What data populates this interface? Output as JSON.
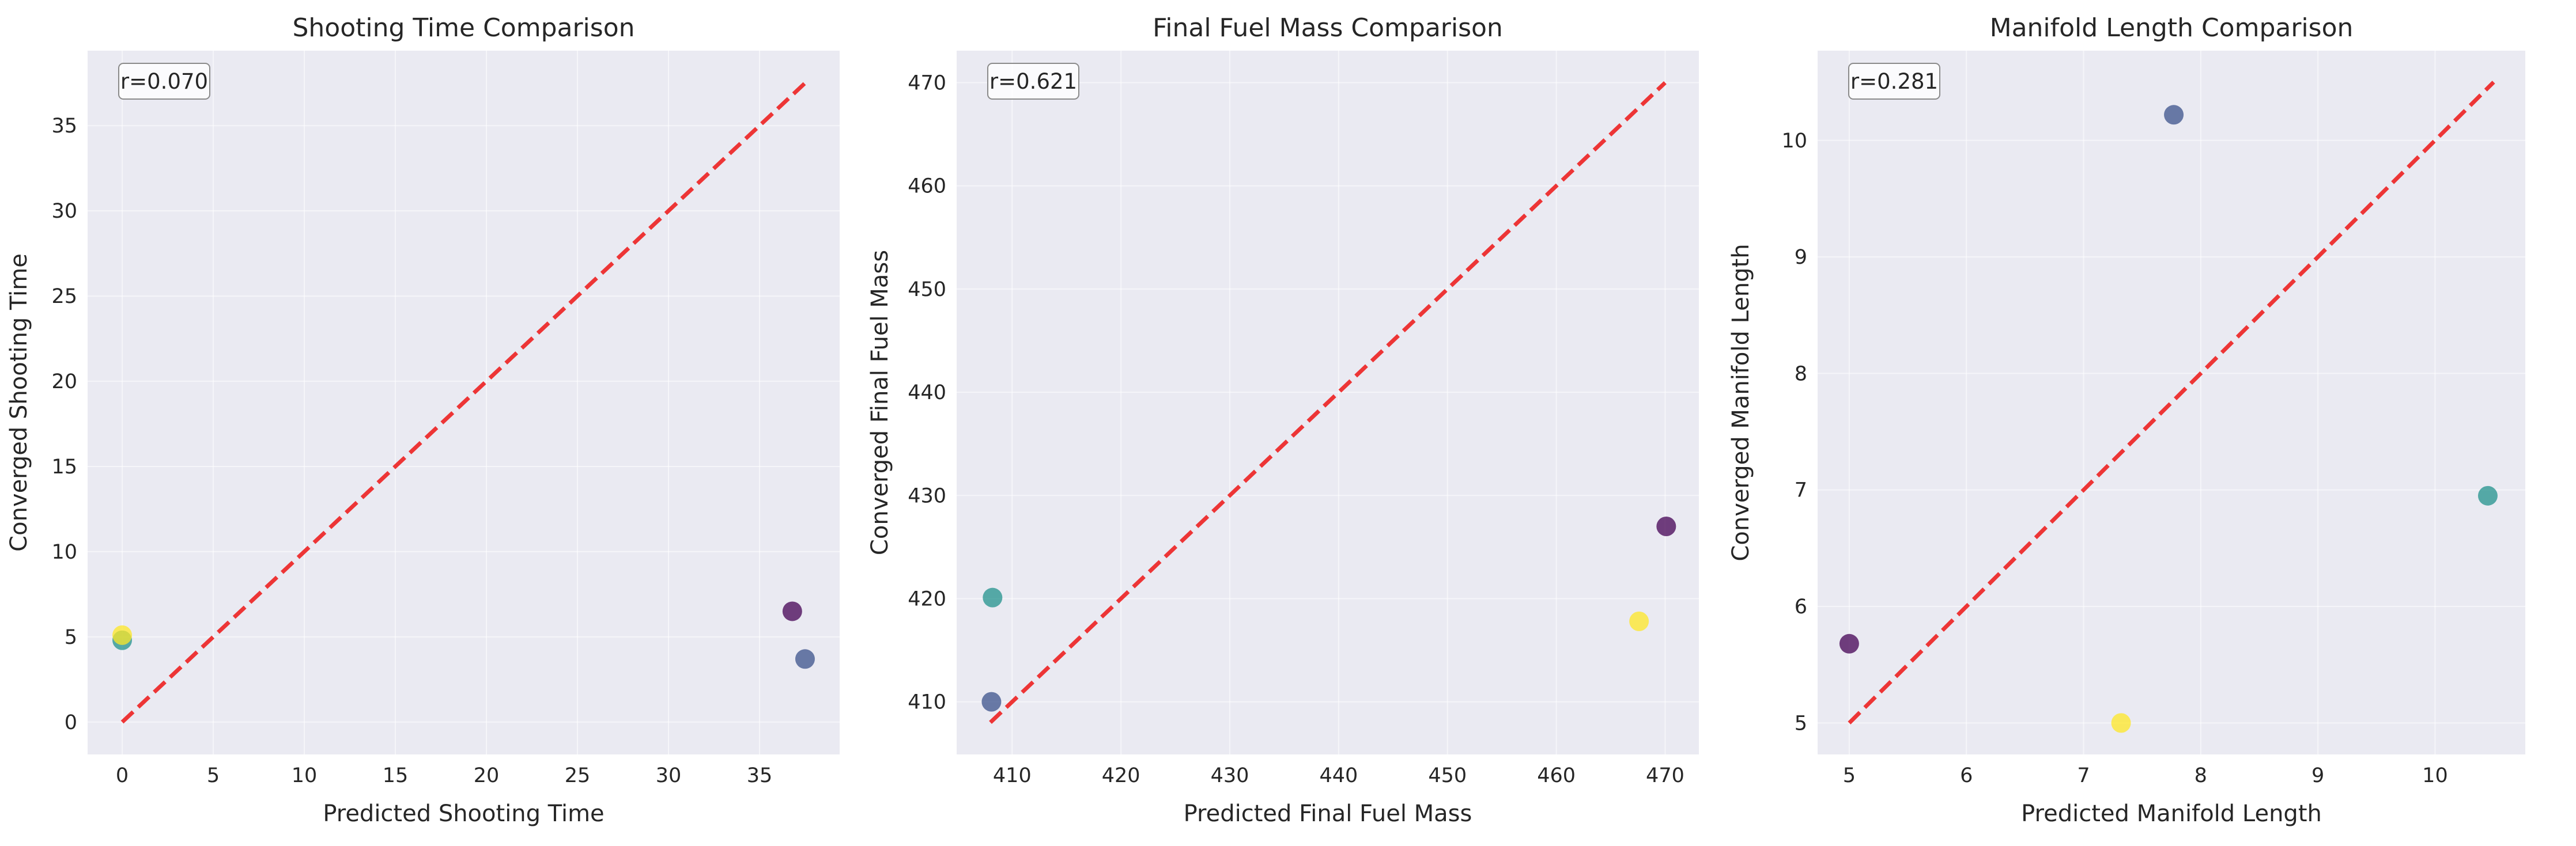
{
  "colors": {
    "plot_bg": "#eaeaf2",
    "grid": "#ffffff",
    "identity_line": "#ee2222",
    "point_purple": "#440154",
    "point_blue": "#3b528b",
    "point_teal": "#21918c",
    "point_yellow": "#fde725"
  },
  "chart_data": [
    {
      "type": "scatter",
      "title": "Shooting Time Comparison",
      "xlabel": "Predicted Shooting Time",
      "ylabel": "Converged Shooting Time",
      "annotation": "r=0.070",
      "xlim": [
        -1.9,
        39.4
      ],
      "ylim": [
        -1.9,
        39.4
      ],
      "xticks": [
        0,
        5,
        10,
        15,
        20,
        25,
        30,
        35
      ],
      "yticks": [
        0,
        5,
        10,
        15,
        20,
        25,
        30,
        35
      ],
      "identity_line": [
        0,
        37.5
      ],
      "grid": true,
      "points": [
        {
          "x": 36.8,
          "y": 6.5,
          "color": "point_purple"
        },
        {
          "x": 37.5,
          "y": 3.7,
          "color": "point_blue"
        },
        {
          "x": 0.0,
          "y": 4.8,
          "color": "point_teal"
        },
        {
          "x": 0.0,
          "y": 5.1,
          "color": "point_yellow"
        }
      ]
    },
    {
      "type": "scatter",
      "title": "Final Fuel Mass Comparison",
      "xlabel": "Predicted Final Fuel Mass",
      "ylabel": "Converged Final Fuel Mass",
      "annotation": "r=0.621",
      "xlim": [
        404.9,
        473.1
      ],
      "ylim": [
        404.9,
        473.1
      ],
      "xticks": [
        410,
        420,
        430,
        440,
        450,
        460,
        470
      ],
      "yticks": [
        410,
        420,
        430,
        440,
        450,
        460,
        470
      ],
      "identity_line": [
        408,
        470
      ],
      "grid": true,
      "points": [
        {
          "x": 470.1,
          "y": 427.0,
          "color": "point_purple"
        },
        {
          "x": 408.1,
          "y": 410.0,
          "color": "point_blue"
        },
        {
          "x": 408.2,
          "y": 420.1,
          "color": "point_teal"
        },
        {
          "x": 467.6,
          "y": 417.8,
          "color": "point_yellow"
        }
      ]
    },
    {
      "type": "scatter",
      "title": "Manifold Length Comparison",
      "xlabel": "Predicted Manifold Length",
      "ylabel": "Converged Manifold Length",
      "annotation": "r=0.281",
      "xlim": [
        4.73,
        10.77
      ],
      "ylim": [
        4.73,
        10.77
      ],
      "xticks": [
        5,
        6,
        7,
        8,
        9,
        10
      ],
      "yticks": [
        5,
        6,
        7,
        8,
        9,
        10
      ],
      "identity_line": [
        5.0,
        10.5
      ],
      "grid": true,
      "points": [
        {
          "x": 5.0,
          "y": 5.68,
          "color": "point_purple"
        },
        {
          "x": 7.77,
          "y": 10.22,
          "color": "point_blue"
        },
        {
          "x": 10.45,
          "y": 6.95,
          "color": "point_teal"
        },
        {
          "x": 7.32,
          "y": 5.0,
          "color": "point_yellow"
        }
      ]
    }
  ]
}
